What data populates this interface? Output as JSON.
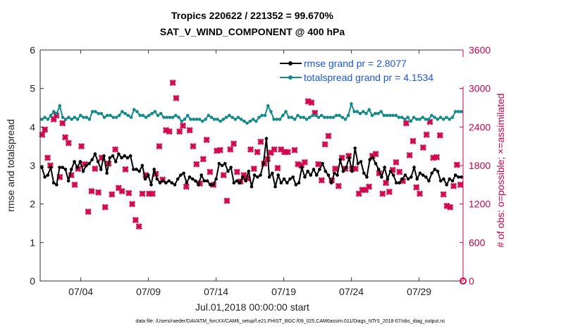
{
  "chart_data": {
    "type": "line",
    "title": "Tropics 220622 / 221352 = 99.670%",
    "subtitle": "SAT_V_WIND_COMPONENT @ 400 hPa",
    "xlabel": "Jul.01,2018 00:00:00 start",
    "ylabel": "rmse and totalspread",
    "ylabel_right": "# of obs: o=possible; ×=assimilated",
    "footnote": "data file: /Users/raeder/DAI/ATM_forcXX/CAM6_setup/f.e21.FHIST_BGC.f09_025.CAM6assim.011/Diags_NTrS_2018-07/obs_diag_output.nc",
    "xlim": [
      1.0,
      32.25
    ],
    "ylim": [
      0,
      6
    ],
    "ylim_right": [
      0,
      3600
    ],
    "x_ticks": [
      4,
      9,
      14,
      19,
      24,
      29
    ],
    "x_tick_labels": [
      "07/04",
      "07/09",
      "07/14",
      "07/19",
      "07/24",
      "07/29"
    ],
    "y_ticks": [
      0,
      1,
      2,
      3,
      4,
      5,
      6
    ],
    "y_tick_labels": [
      "0",
      "1",
      "2",
      "3",
      "4",
      "5",
      "6"
    ],
    "y_right_ticks": [
      0,
      600,
      1200,
      1800,
      2400,
      3000,
      3600
    ],
    "y_right_tick_labels": [
      "0",
      "600",
      "1200",
      "1800",
      "2400",
      "3000",
      "3600"
    ],
    "legend_location": "top-right",
    "series": [
      {
        "name": "rmse grand pr = 2.8077",
        "color": "#000000",
        "marker": "circle",
        "values": [
          2.95,
          2.7,
          2.75,
          2.95,
          2.55,
          2.5,
          2.95,
          2.95,
          2.9,
          2.6,
          2.9,
          3.1,
          2.95,
          3.1,
          2.85,
          3.0,
          3.05,
          3.15,
          3.3,
          3.1,
          2.9,
          3.25,
          2.8,
          3.2,
          3.25,
          3.1,
          3.3,
          3.2,
          3.25,
          3.2,
          3.25,
          2.9,
          2.9,
          2.85,
          3.0,
          2.65,
          2.75,
          2.5,
          2.9,
          2.65,
          2.55,
          2.6,
          2.55,
          2.6,
          2.55,
          2.5,
          2.65,
          2.75,
          2.8,
          2.55,
          2.7,
          2.65,
          2.6,
          2.5,
          2.75,
          2.6,
          2.6,
          2.5,
          2.5,
          2.65,
          3.05,
          3.0,
          3.05,
          2.85,
          2.95,
          2.55,
          2.6,
          2.55,
          2.7,
          2.6,
          2.85,
          2.45,
          2.75,
          2.7,
          2.75,
          3.05,
          3.7,
          2.7,
          2.8,
          2.45,
          2.75,
          2.55,
          2.65,
          2.55,
          2.65,
          2.7,
          2.5,
          2.55,
          2.95,
          2.7,
          2.85,
          2.75,
          2.9,
          2.75,
          2.9,
          3.05,
          2.85,
          2.75,
          2.55,
          2.8,
          2.75,
          3.15,
          2.85,
          2.95,
          3.2,
          2.85,
          3.45,
          3.05,
          3.1,
          2.8,
          2.7,
          3.15,
          3.2,
          3.05,
          2.9,
          2.7,
          2.95,
          2.65,
          2.85,
          2.75,
          2.55,
          2.55,
          2.65,
          2.75,
          2.65,
          2.7,
          2.95,
          2.65,
          2.8,
          2.75,
          2.7,
          2.6,
          2.8,
          2.9,
          2.85,
          2.6,
          2.65,
          2.5,
          2.65,
          2.6,
          2.75,
          2.7,
          2.7
        ]
      },
      {
        "name": "totalspread grand pr = 4.1534",
        "color": "#128a8a",
        "marker": "circle",
        "values": [
          4.2,
          4.25,
          4.2,
          4.3,
          4.4,
          4.35,
          4.55,
          4.25,
          4.2,
          4.25,
          4.2,
          4.25,
          4.2,
          4.3,
          4.25,
          4.25,
          4.2,
          4.4,
          4.4,
          4.35,
          4.35,
          4.25,
          4.3,
          4.3,
          4.25,
          4.25,
          4.3,
          4.4,
          4.35,
          4.3,
          4.25,
          4.45,
          4.4,
          4.3,
          4.3,
          4.25,
          4.3,
          4.35,
          4.4,
          4.3,
          4.35,
          4.25,
          4.25,
          4.25,
          4.25,
          4.3,
          4.25,
          4.15,
          4.2,
          4.3,
          4.2,
          4.2,
          4.2,
          4.2,
          4.15,
          4.2,
          4.3,
          4.25,
          4.2,
          4.2,
          4.15,
          4.2,
          4.25,
          4.3,
          4.25,
          4.2,
          4.25,
          4.2,
          4.15,
          4.1,
          4.15,
          4.2,
          4.15,
          4.25,
          4.3,
          4.3,
          4.55,
          4.4,
          4.2,
          4.2,
          4.2,
          4.3,
          4.4,
          4.25,
          4.25,
          4.2,
          4.3,
          4.25,
          4.25,
          4.2,
          4.25,
          4.3,
          4.3,
          4.25,
          4.3,
          4.25,
          4.25,
          4.25,
          4.25,
          4.3,
          4.3,
          4.25,
          4.2,
          4.3,
          4.6,
          4.4,
          4.4,
          4.35,
          4.4,
          4.35,
          4.45,
          4.3,
          4.35,
          4.35,
          4.4,
          4.3,
          4.3,
          4.3,
          4.3,
          4.3,
          4.25,
          4.25,
          4.2,
          4.25,
          4.15,
          4.25,
          4.2,
          4.2,
          4.25,
          4.2,
          4.2,
          4.3,
          4.25,
          4.2,
          4.25,
          4.2,
          4.25,
          4.2,
          4.25,
          4.4,
          4.4,
          4.4
        ]
      }
    ],
    "assimilated_obs": {
      "name": "assimilated",
      "color": "#d1064c",
      "marker": "x",
      "axis": "right",
      "x": [
        1.15,
        1.35,
        1.55,
        1.75,
        2.0,
        2.2,
        2.45,
        2.65,
        2.85,
        3.1,
        3.3,
        3.55,
        3.8,
        4.05,
        4.3,
        4.55,
        4.8,
        5.05,
        5.3,
        5.55,
        5.8,
        6.05,
        6.3,
        6.55,
        6.8,
        7.05,
        7.3,
        7.55,
        7.8,
        8.05,
        8.3,
        8.55,
        8.8,
        9.05,
        9.3,
        9.55,
        9.8,
        10.05,
        10.3,
        10.55,
        10.8,
        11.05,
        11.3,
        11.55,
        11.8,
        12.05,
        12.3,
        12.55,
        12.8,
        13.05,
        13.3,
        13.55,
        13.8,
        14.05,
        14.3,
        14.55,
        14.8,
        15.05,
        15.3,
        15.55,
        15.8,
        16.05,
        16.3,
        16.55,
        16.8,
        17.05,
        17.3,
        17.55,
        17.8,
        18.05,
        18.3,
        18.55,
        18.8,
        19.05,
        19.3,
        19.55,
        19.8,
        20.05,
        20.3,
        20.55,
        20.8,
        21.05,
        21.3,
        21.55,
        21.8,
        22.05,
        22.3,
        22.55,
        22.8,
        23.05,
        23.3,
        23.55,
        23.8,
        24.05,
        24.3,
        24.55,
        24.8,
        25.05,
        25.3,
        25.55,
        25.8,
        26.05,
        26.3,
        26.55,
        26.8,
        27.05,
        27.3,
        27.55,
        27.8,
        28.05,
        28.3,
        28.55,
        28.8,
        29.05,
        29.3,
        29.55,
        29.8,
        30.05,
        30.3,
        30.55,
        30.8,
        31.05,
        31.3,
        31.55,
        31.8,
        32.05
      ],
      "y": [
        2280,
        2360,
        1920,
        1800,
        2520,
        2580,
        1620,
        2460,
        2240,
        2150,
        1650,
        1500,
        1750,
        2100,
        1820,
        1080,
        1400,
        1750,
        1380,
        1920,
        1150,
        1830,
        1350,
        2050,
        1450,
        1400,
        1740,
        1370,
        1200,
        950,
        850,
        1360,
        1650,
        1360,
        1360,
        1670,
        2100,
        1580,
        2350,
        2330,
        3090,
        2850,
        2330,
        2420,
        1470,
        2350,
        2100,
        1820,
        1520,
        1900,
        2200,
        1700,
        1500,
        2030,
        2040,
        1650,
        1250,
        2050,
        2140,
        1700,
        1550,
        1650,
        1600,
        2050,
        1750,
        2010,
        2170,
        1830,
        1900,
        2000,
        2050,
        1760,
        2050,
        2010,
        2010,
        3330,
        2040,
        1820,
        1800,
        1850,
        2800,
        2780,
        2620,
        1820,
        1570,
        2130,
        2260,
        1570,
        1750,
        1480,
        1920,
        1750,
        1950,
        1750,
        1750,
        1360,
        1420,
        1420,
        1470,
        1950,
        1980,
        1680,
        1360,
        1530,
        1390,
        1730,
        1850,
        1700,
        1560,
        2460,
        1960,
        2180,
        1460,
        1360,
        2080,
        2280,
        2480,
        1920,
        1930,
        2270,
        1350,
        1170,
        1150,
        1480,
        1810,
        1500
      ]
    },
    "possible_obs_right": [
      0
    ]
  }
}
